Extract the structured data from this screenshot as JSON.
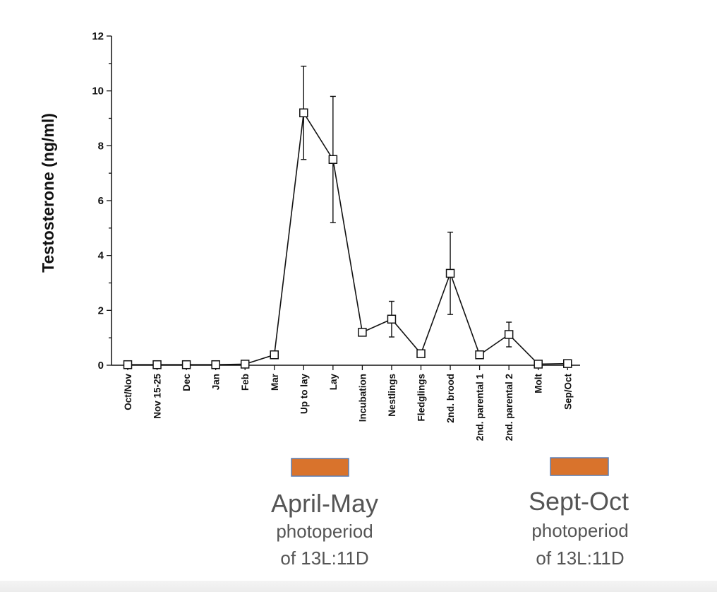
{
  "chart_data": {
    "type": "line",
    "title": "",
    "xlabel": "",
    "ylabel": "Testosterone (ng/ml)",
    "ylim": [
      0,
      12
    ],
    "yticks": [
      0,
      2,
      4,
      6,
      8,
      10,
      12
    ],
    "grid": false,
    "categories": [
      "Oct/Nov",
      "Nov 15-25",
      "Dec",
      "Jan",
      "Feb",
      "Mar",
      "Up to lay",
      "Lay",
      "Incubation",
      "Nestlings",
      "Fledglings",
      "2nd. brood",
      "2nd. parental 1",
      "2nd. parental 2",
      "Molt",
      "Sep/Oct"
    ],
    "series": [
      {
        "values": [
          0.02,
          0.02,
          0.02,
          0.02,
          0.04,
          0.38,
          9.2,
          7.5,
          1.2,
          1.68,
          0.42,
          3.35,
          0.38,
          1.12,
          0.04,
          0.06
        ],
        "error": [
          0,
          0,
          0,
          0,
          0,
          0,
          1.7,
          2.3,
          0,
          0.65,
          0,
          1.5,
          0,
          0.45,
          0,
          0
        ],
        "marker": "open-square",
        "color": "#111111"
      }
    ],
    "annotations": [
      {
        "title": "April-May",
        "line1": "photoperiod",
        "line2": "of 13L:11D",
        "color": "#d9732c",
        "border": "#5a7fb5"
      },
      {
        "title": "Sept-Oct",
        "line1": "photoperiod",
        "line2": "of 13L:11D",
        "color": "#d9732c",
        "border": "#5a7fb5"
      }
    ]
  }
}
